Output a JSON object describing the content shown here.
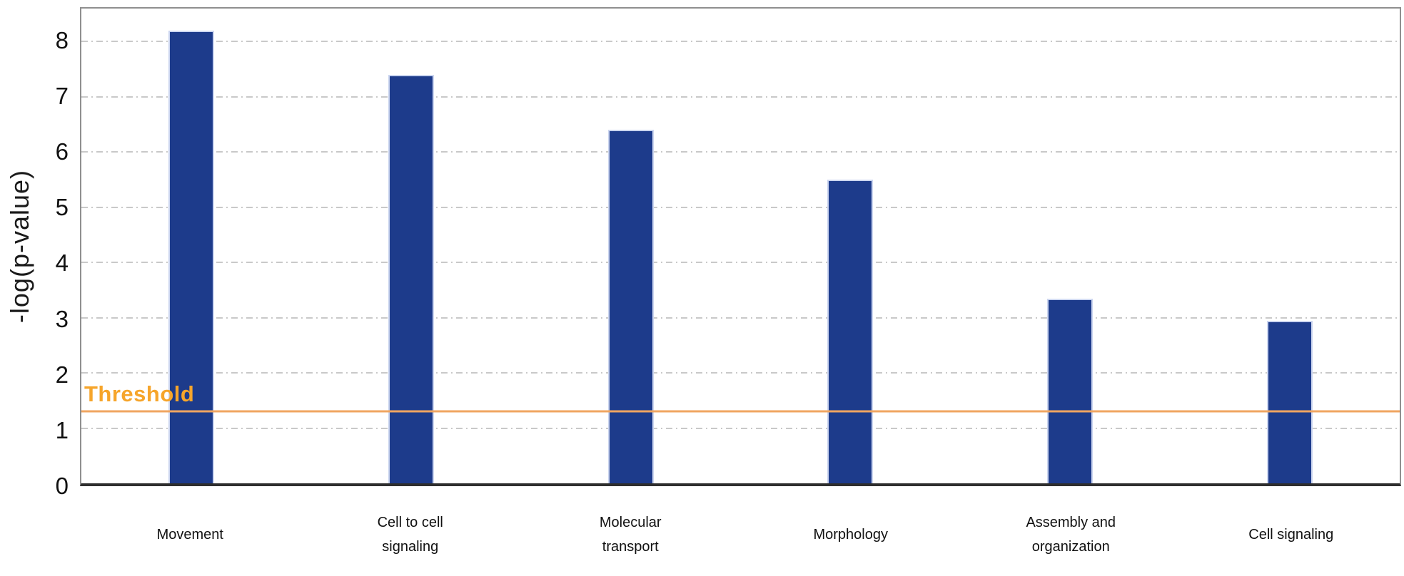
{
  "chart_data": {
    "type": "bar",
    "title": "",
    "xlabel": "",
    "ylabel": "-log(p-value)",
    "categories": [
      "Movement",
      "Cell  to  cell\nsignaling",
      "Molecular\ntransport",
      "Morphology",
      "Assembly and\norganization",
      "Cell signaling"
    ],
    "values": [
      8.2,
      7.4,
      6.4,
      5.5,
      3.35,
      2.95
    ],
    "ylim": [
      0,
      8.6
    ],
    "yticks": [
      0,
      1,
      2,
      3,
      4,
      5,
      6,
      7,
      8
    ],
    "grid": "horizontal-dashed",
    "legend": "none",
    "bar_color": "#1d3b8b",
    "bar_edge_color": "#ccd6f0",
    "gridline_color": "#c9c9c9",
    "threshold": {
      "label": "Threshold",
      "value": 1.3,
      "line_color": "#f0a561",
      "label_color": "#f6a52b"
    }
  }
}
